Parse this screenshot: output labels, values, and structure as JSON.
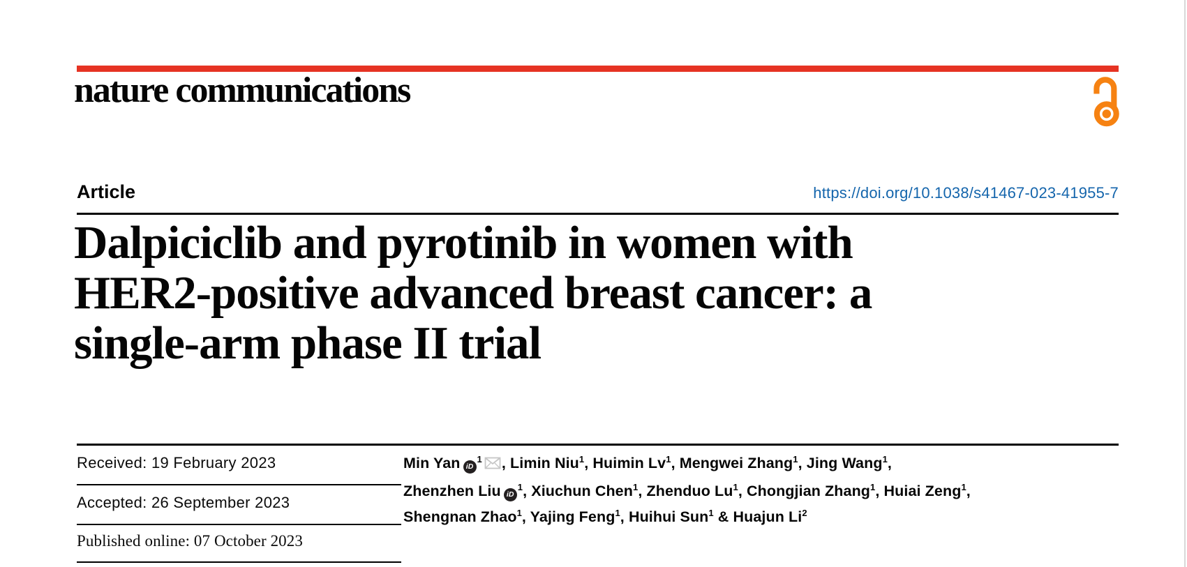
{
  "masthead": {
    "journal": "nature communications",
    "bar_color": "#e63323",
    "open_access_color": "#f68212"
  },
  "icons": {
    "open_access": "open-access-lock",
    "orcid": "orcid-id-badge",
    "email": "envelope"
  },
  "article_header": {
    "kicker": "Article",
    "doi": "https://doi.org/10.1038/s41467-023-41955-7",
    "doi_color": "#1465ac"
  },
  "title": {
    "full": "Dalpiciclib and pyrotinib in women with HER2-positive advanced breast cancer: a single-arm phase II trial",
    "lines": [
      "Dalpiciclib and pyrotinib in women with",
      "HER2-positive advanced breast cancer: a",
      "single-arm phase II trial"
    ]
  },
  "history": {
    "received": "Received: 19 February 2023",
    "accepted": "Accepted: 26 September 2023",
    "published": "Published online: 07 October 2023"
  },
  "authors": {
    "lines": [
      {
        "parts": [
          {
            "name": "Min Yan",
            "orcid": true,
            "sup": "1",
            "mail": true,
            "after": ", "
          },
          {
            "name": "Limin Niu",
            "sup": "1",
            "after": ", "
          },
          {
            "name": "Huimin Lv",
            "sup": "1",
            "after": ", "
          },
          {
            "name": "Mengwei Zhang",
            "sup": "1",
            "after": ", "
          },
          {
            "name": "Jing Wang",
            "sup": "1",
            "after": ","
          }
        ]
      },
      {
        "parts": [
          {
            "name": "Zhenzhen Liu",
            "orcid": true,
            "sup": "1",
            "after": ", "
          },
          {
            "name": "Xiuchun Chen",
            "sup": "1",
            "after": ", "
          },
          {
            "name": "Zhenduo Lu",
            "sup": "1",
            "after": ", "
          },
          {
            "name": "Chongjian Zhang",
            "sup": "1",
            "after": ", "
          },
          {
            "name": "Huiai Zeng",
            "sup": "1",
            "after": ","
          }
        ]
      },
      {
        "parts": [
          {
            "name": "Shengnan Zhao",
            "sup": "1",
            "after": ", "
          },
          {
            "name": "Yajing Feng",
            "sup": "1",
            "after": ", "
          },
          {
            "name": "Huihui Sun",
            "sup": "1",
            "after": " & "
          },
          {
            "name": "Huajun Li",
            "sup": "2",
            "after": ""
          }
        ]
      }
    ]
  }
}
